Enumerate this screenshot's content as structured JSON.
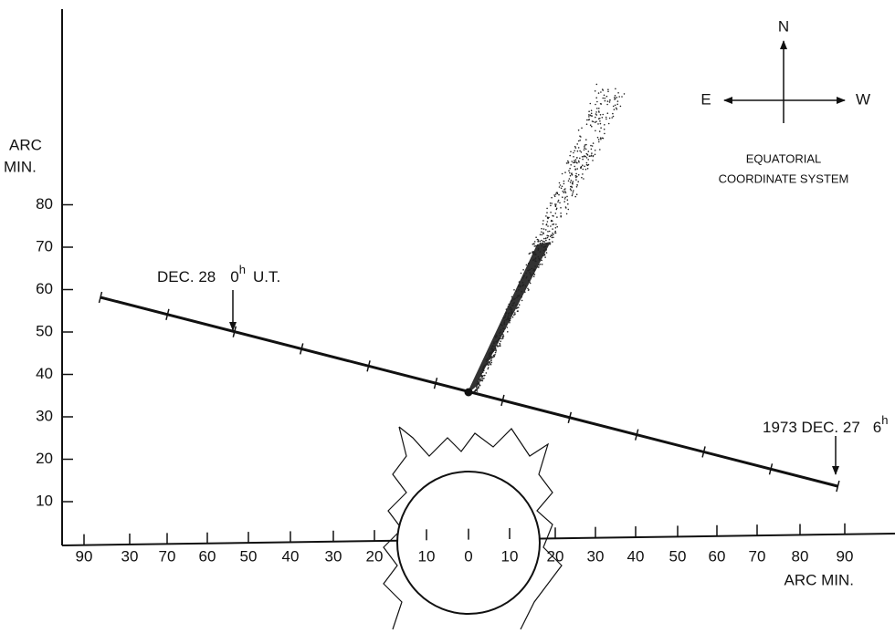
{
  "y_axis": {
    "title_lines": [
      "ARC",
      "MIN."
    ],
    "ticks": [
      "10",
      "20",
      "30",
      "40",
      "50",
      "60",
      "70",
      "80"
    ]
  },
  "x_axis": {
    "ticks": [
      "90",
      "30",
      "70",
      "60",
      "50",
      "40",
      "30",
      "20",
      "10",
      "0",
      "10",
      "20",
      "30",
      "40",
      "50",
      "60",
      "70",
      "80",
      "90"
    ],
    "title": "ARC MIN."
  },
  "annotations": [
    {
      "date": "DEC. 28",
      "hour": "0",
      "hour_unit": "h",
      "suffix": "U.T."
    },
    {
      "date": "1973 DEC. 27",
      "hour": "6",
      "hour_unit": "h"
    }
  ],
  "compass": {
    "north": "N",
    "east": "E",
    "west": "W",
    "caption_lines": [
      "EQUATORIAL",
      "COORDINATE SYSTEM"
    ]
  }
}
